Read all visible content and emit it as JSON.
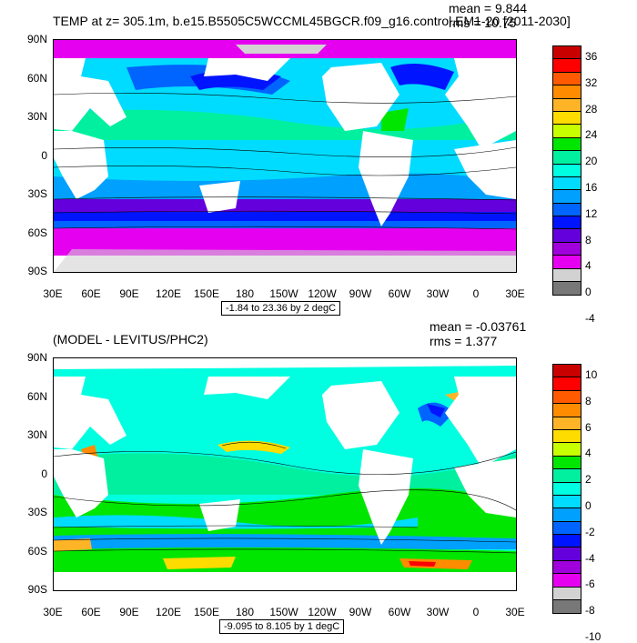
{
  "top": {
    "title": "TEMP at z= 305.1m, b.e15.B5505C5WCCML45BGCR.f09_g16.control.EM1-20 [2011-2030]",
    "mean": "mean = 9.844",
    "rms": "rms = 10.75",
    "contour_info": "-1.84 to 23.36 by 2 degC",
    "colorbar_labels": [
      "36",
      "32",
      "28",
      "24",
      "20",
      "16",
      "12",
      "8",
      "4",
      "0",
      "-4"
    ],
    "colors": [
      "#c80000",
      "#ff0000",
      "#ff5a00",
      "#ff8c00",
      "#ffb428",
      "#ffdc00",
      "#c8ff00",
      "#00e600",
      "#00f0a0",
      "#00ffe0",
      "#00dcff",
      "#00a0ff",
      "#0064ff",
      "#0014ff",
      "#6400dc",
      "#a000dc",
      "#e600f0",
      "#d2d2d2",
      "#787878"
    ]
  },
  "bottom": {
    "title": "(MODEL - LEVITUS/PHC2)",
    "mean": "mean = -0.03761",
    "rms": "rms = 1.377",
    "contour_info": "-9.095 to 8.105 by 1 degC",
    "colorbar_labels": [
      "10",
      "8",
      "6",
      "4",
      "2",
      "0",
      "-2",
      "-4",
      "-6",
      "-8",
      "-10"
    ],
    "colors": [
      "#c80000",
      "#ff0000",
      "#ff5a00",
      "#ff8c00",
      "#ffb428",
      "#ffdc00",
      "#c8ff00",
      "#00e600",
      "#00f0a0",
      "#00ffe0",
      "#00dcff",
      "#00a0ff",
      "#0064ff",
      "#0014ff",
      "#6400dc",
      "#a000dc",
      "#e600f0",
      "#d2d2d2",
      "#787878"
    ]
  },
  "axes": {
    "lat_labels": [
      "90N",
      "60N",
      "30N",
      "0",
      "30S",
      "60S",
      "90S"
    ],
    "lon_labels": [
      "30E",
      "60E",
      "90E",
      "120E",
      "150E",
      "180",
      "150W",
      "120W",
      "90W",
      "60W",
      "30W",
      "0",
      "30E"
    ]
  }
}
